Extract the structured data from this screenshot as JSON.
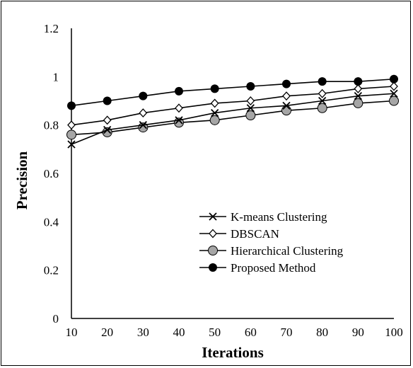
{
  "chart_data": {
    "type": "line",
    "title": "",
    "xlabel": "Iterations",
    "ylabel": "Precision",
    "x": [
      10,
      20,
      30,
      40,
      50,
      60,
      70,
      80,
      90,
      100
    ],
    "xlim": [
      10,
      100
    ],
    "ylim": [
      0,
      1.2
    ],
    "yticks": [
      "0",
      "0.2",
      "0.4",
      "0.6",
      "0.8",
      "1",
      "1.2"
    ],
    "xticks": [
      "10",
      "20",
      "30",
      "40",
      "50",
      "60",
      "70",
      "80",
      "90",
      "100"
    ],
    "grid": false,
    "legend_position": "bottom-right",
    "series": [
      {
        "name": "K-means Clustering",
        "marker": "x",
        "color": "#000000",
        "values": [
          0.72,
          0.78,
          0.8,
          0.82,
          0.85,
          0.87,
          0.88,
          0.9,
          0.92,
          0.93
        ]
      },
      {
        "name": "DBSCAN",
        "marker": "diamond-open",
        "color": "#000000",
        "values": [
          0.8,
          0.82,
          0.85,
          0.87,
          0.89,
          0.9,
          0.92,
          0.93,
          0.95,
          0.96
        ]
      },
      {
        "name": "Hierarchical Clustering",
        "marker": "circle-gray",
        "color": "#a6a6a6",
        "values": [
          0.76,
          0.77,
          0.79,
          0.81,
          0.82,
          0.84,
          0.86,
          0.87,
          0.89,
          0.9
        ]
      },
      {
        "name": "Proposed Method",
        "marker": "circle-filled",
        "color": "#000000",
        "values": [
          0.88,
          0.9,
          0.92,
          0.94,
          0.95,
          0.96,
          0.97,
          0.98,
          0.98,
          0.99
        ]
      }
    ]
  }
}
